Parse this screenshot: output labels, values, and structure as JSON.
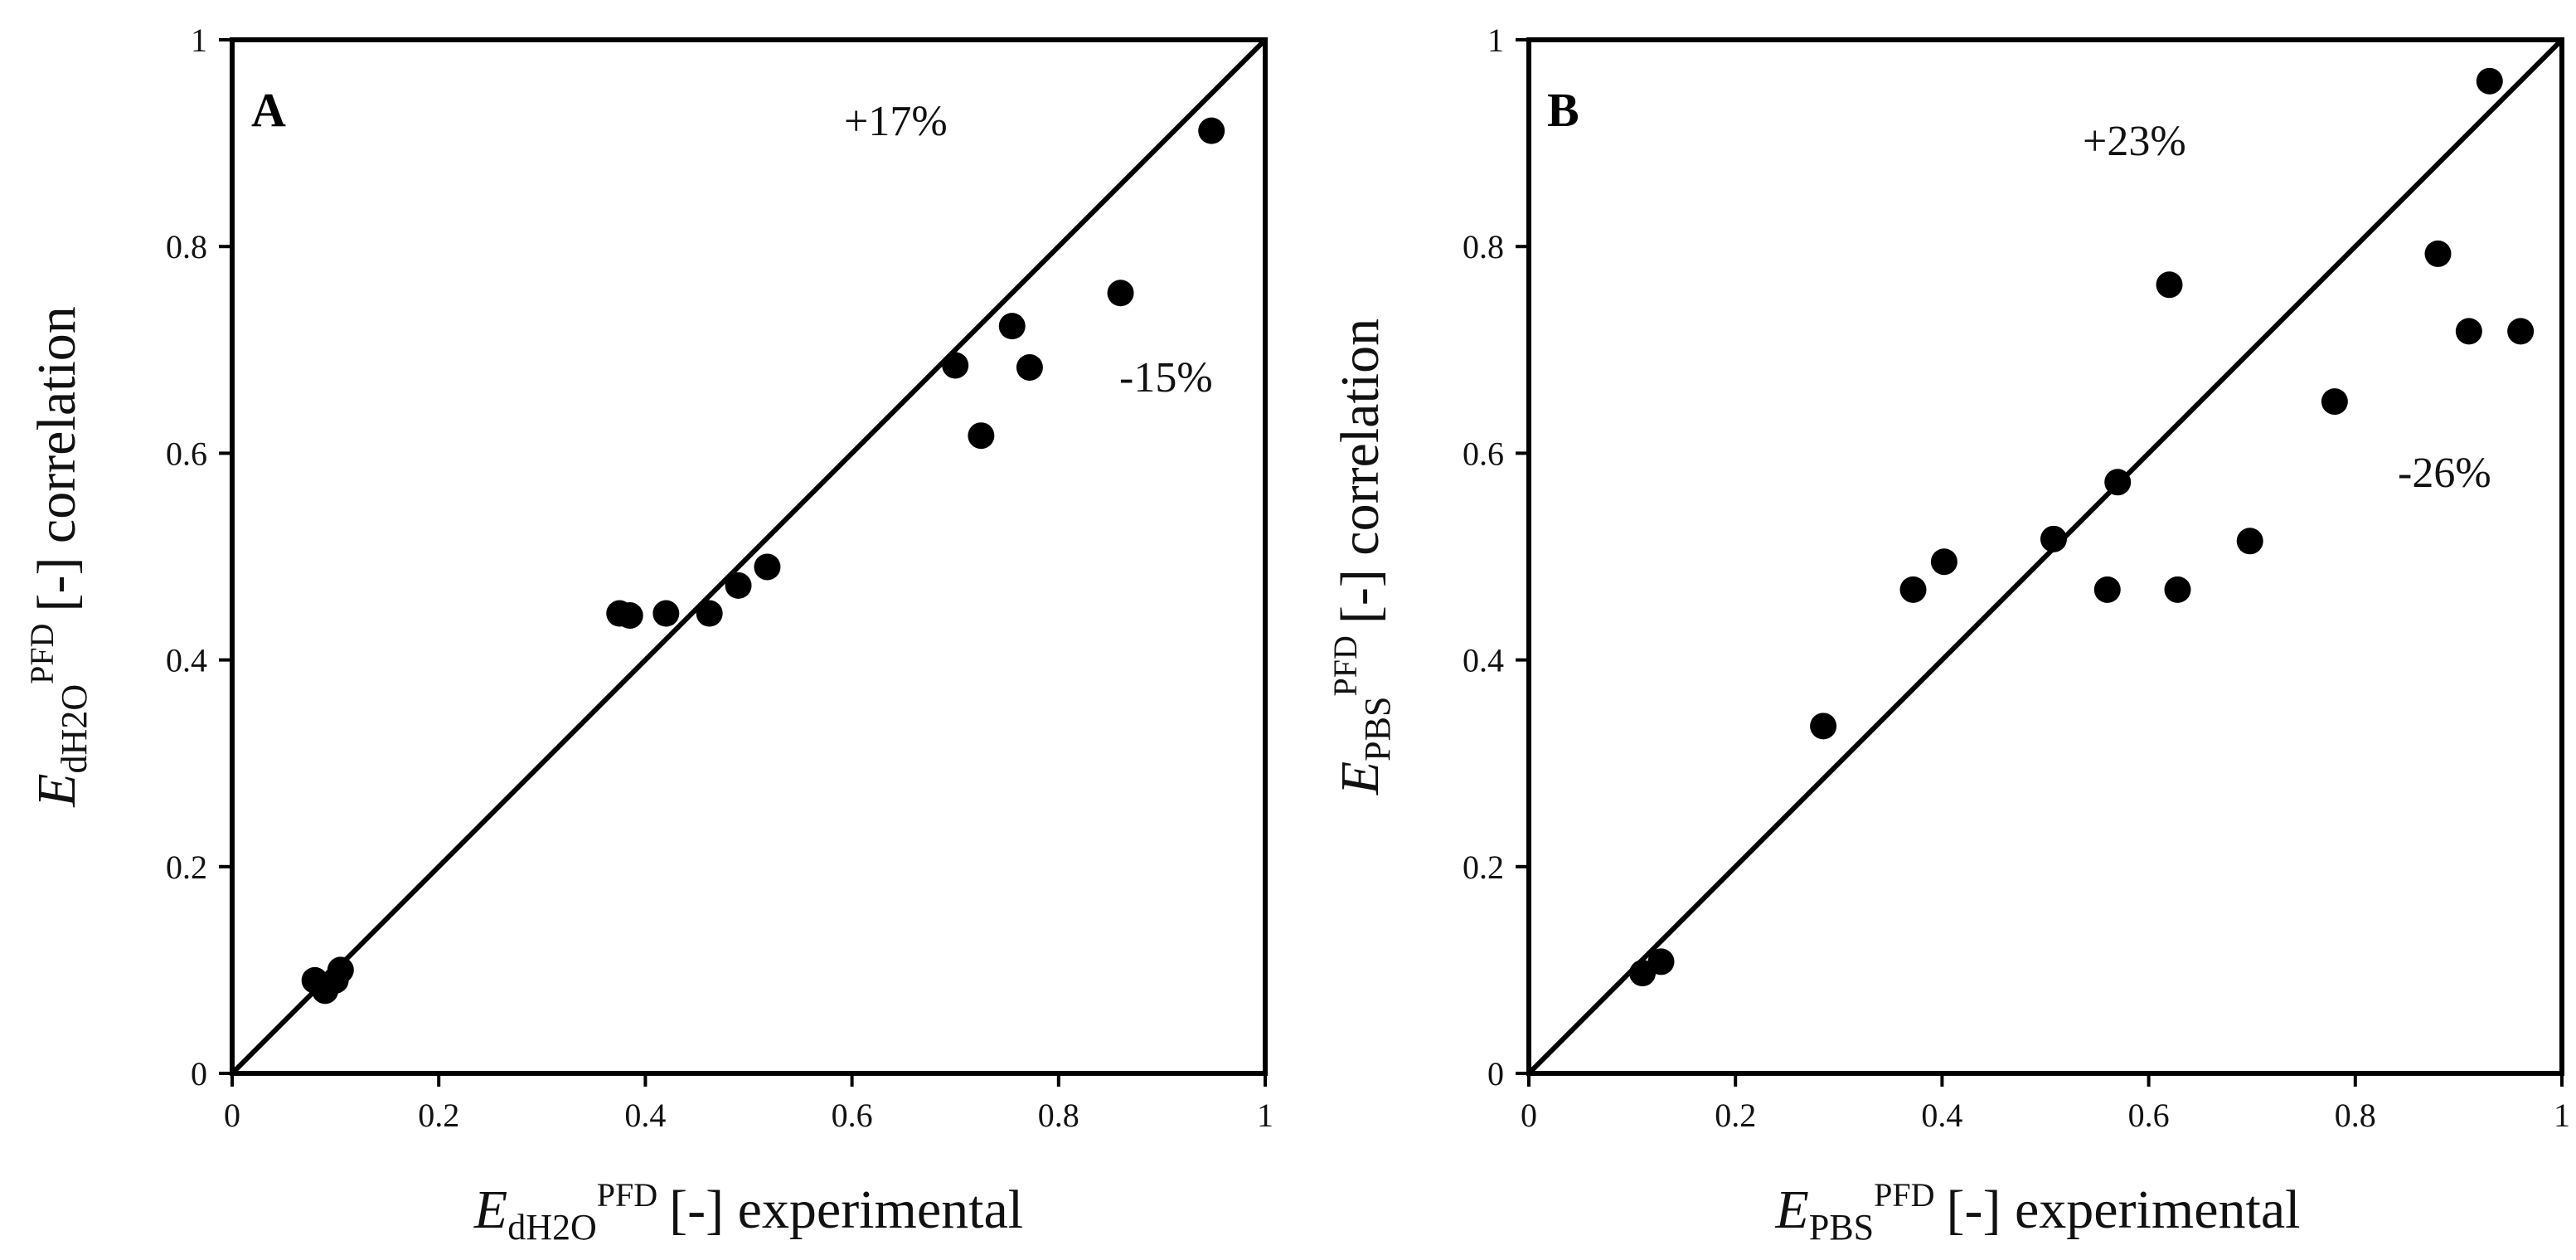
{
  "chart_data": [
    {
      "type": "scatter",
      "panel_label": "A",
      "xlabel": {
        "symbol": "E",
        "subscript": "dH2O",
        "superscript": "PFD",
        "suffix": "[-] experimental"
      },
      "ylabel": {
        "symbol": "E",
        "subscript": "dH2O",
        "superscript": "PFD",
        "suffix": "[-] correlation"
      },
      "xlim": [
        0,
        1
      ],
      "ylim": [
        0,
        1
      ],
      "xticks": [
        "0",
        "0.2",
        "0.4",
        "0.6",
        "0.8",
        "1"
      ],
      "yticks": [
        "0",
        "0.2",
        "0.4",
        "0.6",
        "0.8",
        "1"
      ],
      "reference_line": "y = x",
      "annotations": [
        "+17%",
        "-15%"
      ],
      "points": [
        {
          "x": 0.08,
          "y": 0.09
        },
        {
          "x": 0.09,
          "y": 0.08
        },
        {
          "x": 0.1,
          "y": 0.09
        },
        {
          "x": 0.105,
          "y": 0.1
        },
        {
          "x": 0.375,
          "y": 0.445
        },
        {
          "x": 0.385,
          "y": 0.443
        },
        {
          "x": 0.42,
          "y": 0.445
        },
        {
          "x": 0.462,
          "y": 0.445
        },
        {
          "x": 0.49,
          "y": 0.472
        },
        {
          "x": 0.518,
          "y": 0.49
        },
        {
          "x": 0.7,
          "y": 0.685
        },
        {
          "x": 0.725,
          "y": 0.617
        },
        {
          "x": 0.755,
          "y": 0.723
        },
        {
          "x": 0.772,
          "y": 0.683
        },
        {
          "x": 0.86,
          "y": 0.755
        },
        {
          "x": 0.948,
          "y": 0.912
        }
      ]
    },
    {
      "type": "scatter",
      "panel_label": "B",
      "xlabel": {
        "symbol": "E",
        "subscript": "PBS",
        "superscript": "PFD",
        "suffix": "[-] experimental"
      },
      "ylabel": {
        "symbol": "E",
        "subscript": "PBS",
        "superscript": "PFD",
        "suffix": "[-] correlation"
      },
      "xlim": [
        0,
        1
      ],
      "ylim": [
        0,
        1
      ],
      "xticks": [
        "0",
        "0.2",
        "0.4",
        "0.6",
        "0.8",
        "1"
      ],
      "yticks": [
        "0",
        "0.2",
        "0.4",
        "0.6",
        "0.8",
        "1"
      ],
      "reference_line": "y = x",
      "annotations": [
        "+23%",
        "-26%"
      ],
      "points": [
        {
          "x": 0.11,
          "y": 0.097
        },
        {
          "x": 0.128,
          "y": 0.108
        },
        {
          "x": 0.285,
          "y": 0.336
        },
        {
          "x": 0.372,
          "y": 0.468
        },
        {
          "x": 0.402,
          "y": 0.495
        },
        {
          "x": 0.508,
          "y": 0.517
        },
        {
          "x": 0.56,
          "y": 0.468
        },
        {
          "x": 0.57,
          "y": 0.572
        },
        {
          "x": 0.62,
          "y": 0.763
        },
        {
          "x": 0.628,
          "y": 0.468
        },
        {
          "x": 0.698,
          "y": 0.515
        },
        {
          "x": 0.78,
          "y": 0.65
        },
        {
          "x": 0.88,
          "y": 0.793
        },
        {
          "x": 0.91,
          "y": 0.718
        },
        {
          "x": 0.93,
          "y": 0.96
        },
        {
          "x": 0.96,
          "y": 0.718
        }
      ]
    }
  ]
}
